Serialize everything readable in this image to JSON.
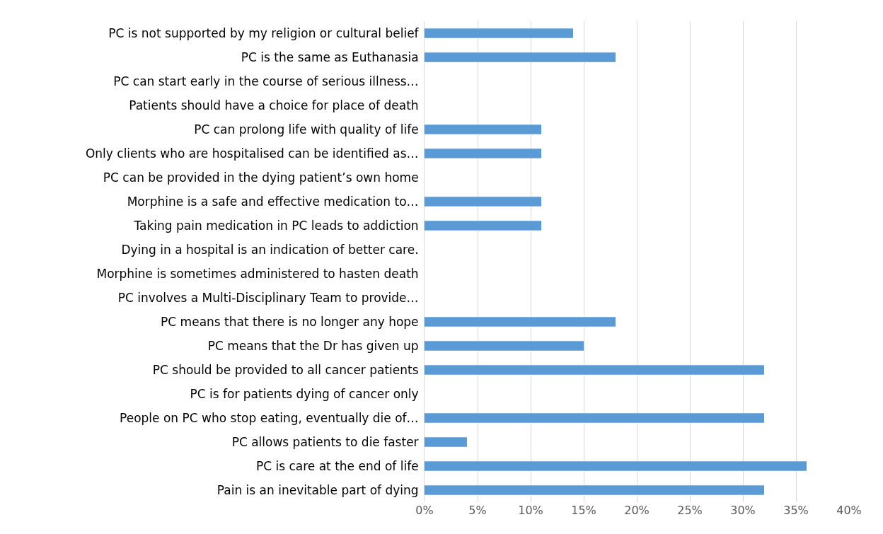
{
  "chart_data": {
    "type": "bar",
    "orientation": "horizontal",
    "categories": [
      "PC is not supported by my religion or cultural belief",
      "PC is the same as Euthanasia",
      "PC can start early in the course of serious illness…",
      "Patients should have a choice for place of death",
      "PC can prolong life with quality of life",
      "Only clients who are hospitalised can be identified as…",
      "PC can be provided in the dying patient’s own home",
      "Morphine is a safe and effective medication to…",
      "Taking pain medication in PC leads to addiction",
      "Dying in a hospital is an indication of better care.",
      "Morphine is sometimes administered to hasten death",
      "PC involves a Multi-Disciplinary Team to provide…",
      "PC means that there is no longer any hope",
      "PC means that the Dr has given up",
      "PC should be provided to all cancer patients",
      "PC is for patients dying of cancer only",
      "People on PC who stop eating, eventually die of…",
      "PC allows patients to die faster",
      "PC is care at the end of life",
      "Pain is an inevitable part of dying"
    ],
    "values": [
      14,
      18,
      0,
      0,
      11,
      11,
      0,
      11,
      11,
      0,
      0,
      0,
      18,
      15,
      32,
      0,
      32,
      4,
      36,
      32
    ],
    "color": "#5b9bd5",
    "xlim": [
      0,
      40
    ],
    "xticks": [
      {
        "value": 0,
        "label": "0%"
      },
      {
        "value": 5,
        "label": "5%"
      },
      {
        "value": 10,
        "label": "10%"
      },
      {
        "value": 15,
        "label": "15%"
      },
      {
        "value": 20,
        "label": "20%"
      },
      {
        "value": 25,
        "label": "25%"
      },
      {
        "value": 30,
        "label": "30%"
      },
      {
        "value": 35,
        "label": "35%"
      },
      {
        "value": 40,
        "label": "40%"
      }
    ],
    "grid": "x"
  }
}
